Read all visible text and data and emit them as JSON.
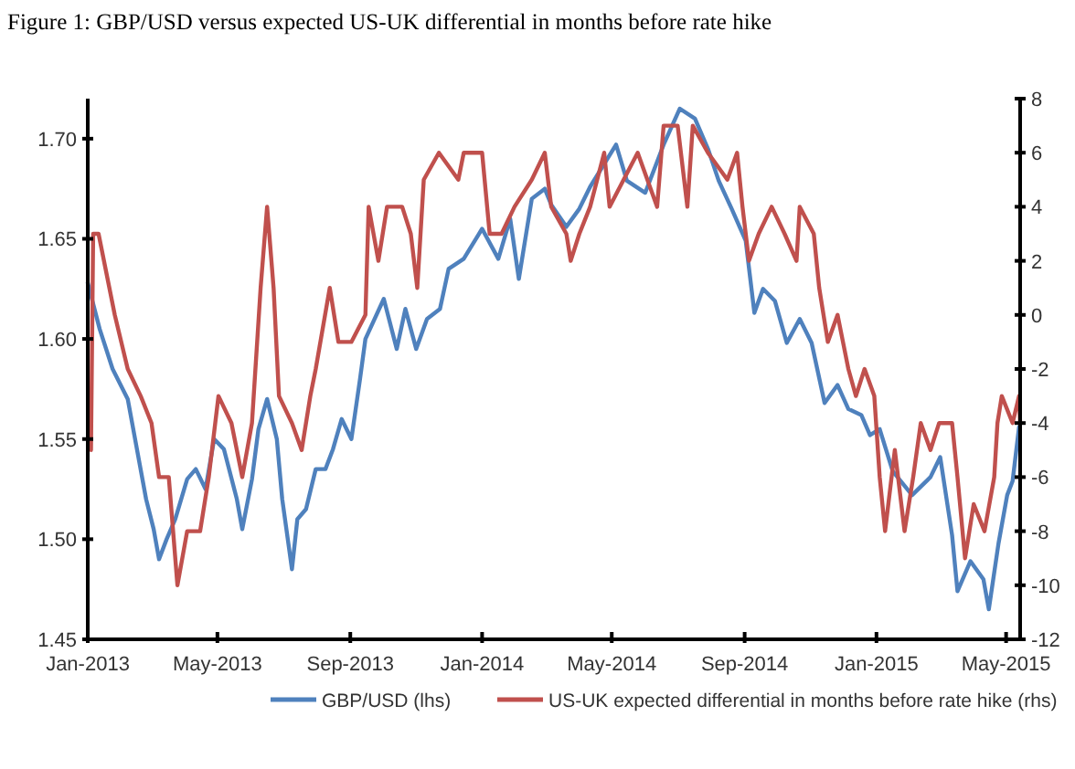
{
  "chart_data": {
    "type": "line",
    "title": "Figure 1: GBP/USD versus expected US-UK differential in months before rate hike",
    "xlim": [
      "2013-01-01",
      "2015-05-14"
    ],
    "xticks": [
      {
        "value": "2013-01-01",
        "label": "Jan-2013"
      },
      {
        "value": "2013-05-01",
        "label": "May-2013"
      },
      {
        "value": "2013-09-01",
        "label": "Sep-2013"
      },
      {
        "value": "2014-01-01",
        "label": "Jan-2014"
      },
      {
        "value": "2014-05-01",
        "label": "May-2014"
      },
      {
        "value": "2014-09-01",
        "label": "Sep-2014"
      },
      {
        "value": "2015-01-01",
        "label": "Jan-2015"
      },
      {
        "value": "2015-05-01",
        "label": "May-2015"
      }
    ],
    "ylim": [
      1.45,
      1.72
    ],
    "yticks": [
      {
        "value": 1.45,
        "label": "1.45"
      },
      {
        "value": 1.5,
        "label": "1.50"
      },
      {
        "value": 1.55,
        "label": "1.55"
      },
      {
        "value": 1.6,
        "label": "1.60"
      },
      {
        "value": 1.65,
        "label": "1.65"
      },
      {
        "value": 1.7,
        "label": "1.70"
      }
    ],
    "y2lim": [
      -12,
      8
    ],
    "y2ticks": [
      -12,
      -10,
      -8,
      -6,
      -4,
      -2,
      0,
      2,
      4,
      6,
      8
    ],
    "grid": false,
    "legend": "bottom",
    "line_style": "solid",
    "marker": "none",
    "series": [
      {
        "name": "GBP/USD (lhs)",
        "color": "#4f81bd",
        "x": [
          "2013-01-01",
          "2013-01-12",
          "2013-01-24",
          "2013-02-07",
          "2013-02-24",
          "2013-03-03",
          "2013-03-08",
          "2013-03-15",
          "2013-03-23",
          "2013-04-03",
          "2013-04-11",
          "2013-04-20",
          "2013-04-28",
          "2013-05-07",
          "2013-05-19",
          "2013-05-24",
          "2013-06-02",
          "2013-06-08",
          "2013-06-16",
          "2013-06-25",
          "2013-06-30",
          "2013-07-09",
          "2013-07-14",
          "2013-07-22",
          "2013-07-31",
          "2013-08-09",
          "2013-08-16",
          "2013-08-24",
          "2013-09-02",
          "2013-09-10",
          "2013-09-15",
          "2013-10-02",
          "2013-10-14",
          "2013-10-22",
          "2013-11-01",
          "2013-11-11",
          "2013-11-23",
          "2013-12-01",
          "2013-12-15",
          "2014-01-01",
          "2014-01-16",
          "2014-01-27",
          "2014-02-04",
          "2014-02-16",
          "2014-02-28",
          "2014-03-06",
          "2014-03-20",
          "2014-04-01",
          "2014-04-11",
          "2014-05-05",
          "2014-05-15",
          "2014-06-01",
          "2014-06-18",
          "2014-07-03",
          "2014-07-17",
          "2014-07-29",
          "2014-08-08",
          "2014-08-20",
          "2014-09-02",
          "2014-09-10",
          "2014-09-18",
          "2014-09-29",
          "2014-10-10",
          "2014-10-22",
          "2014-11-02",
          "2014-11-14",
          "2014-11-26",
          "2014-12-06",
          "2014-12-18",
          "2014-12-26",
          "2015-01-04",
          "2015-01-16",
          "2015-02-03",
          "2015-02-20",
          "2015-03-01",
          "2015-03-12",
          "2015-03-17",
          "2015-03-29",
          "2015-04-10",
          "2015-04-15",
          "2015-04-24",
          "2015-05-02",
          "2015-05-07",
          "2015-05-13"
        ],
        "values": [
          1.628,
          1.605,
          1.585,
          1.57,
          1.52,
          1.505,
          1.49,
          1.5,
          1.51,
          1.53,
          1.535,
          1.525,
          1.55,
          1.545,
          1.52,
          1.505,
          1.53,
          1.555,
          1.57,
          1.55,
          1.52,
          1.485,
          1.51,
          1.515,
          1.535,
          1.535,
          1.545,
          1.56,
          1.55,
          1.58,
          1.6,
          1.62,
          1.595,
          1.615,
          1.595,
          1.61,
          1.615,
          1.635,
          1.64,
          1.655,
          1.64,
          1.66,
          1.63,
          1.67,
          1.675,
          1.667,
          1.656,
          1.665,
          1.676,
          1.697,
          1.679,
          1.673,
          1.697,
          1.715,
          1.71,
          1.695,
          1.679,
          1.665,
          1.649,
          1.613,
          1.625,
          1.619,
          1.598,
          1.61,
          1.598,
          1.568,
          1.577,
          1.565,
          1.562,
          1.552,
          1.555,
          1.534,
          1.522,
          1.531,
          1.541,
          1.502,
          1.474,
          1.489,
          1.48,
          1.465,
          1.498,
          1.522,
          1.529,
          1.556
        ]
      },
      {
        "name": "US-UK expected differential in months before rate hike (rhs)",
        "color": "#c0504d",
        "axis": "y2",
        "x": [
          "2013-01-04",
          "2013-01-06",
          "2013-01-11",
          "2013-01-26",
          "2013-02-07",
          "2013-02-19",
          "2013-03-01",
          "2013-03-08",
          "2013-03-17",
          "2013-03-25",
          "2013-04-03",
          "2013-04-15",
          "2013-04-23",
          "2013-05-02",
          "2013-05-14",
          "2013-05-24",
          "2013-06-02",
          "2013-06-10",
          "2013-06-16",
          "2013-06-22",
          "2013-06-27",
          "2013-07-09",
          "2013-07-18",
          "2013-07-26",
          "2013-07-31",
          "2013-08-13",
          "2013-08-21",
          "2013-09-02",
          "2013-09-15",
          "2013-09-18",
          "2013-09-27",
          "2013-10-05",
          "2013-10-19",
          "2013-10-27",
          "2013-11-02",
          "2013-11-08",
          "2013-11-22",
          "2013-12-10",
          "2013-12-15",
          "2014-01-01",
          "2014-01-08",
          "2014-01-19",
          "2014-01-31",
          "2014-02-16",
          "2014-02-28",
          "2014-03-06",
          "2014-03-20",
          "2014-03-24",
          "2014-04-01",
          "2014-04-11",
          "2014-04-24",
          "2014-04-29",
          "2014-05-12",
          "2014-05-25",
          "2014-06-12",
          "2014-06-18",
          "2014-07-01",
          "2014-07-10",
          "2014-07-15",
          "2014-07-29",
          "2014-08-16",
          "2014-08-25",
          "2014-08-30",
          "2014-09-05",
          "2014-09-14",
          "2014-09-26",
          "2014-10-08",
          "2014-10-19",
          "2014-10-22",
          "2014-11-04",
          "2014-11-09",
          "2014-11-17",
          "2014-11-26",
          "2014-12-01",
          "2014-12-06",
          "2014-12-13",
          "2014-12-21",
          "2014-12-30",
          "2015-01-04",
          "2015-01-09",
          "2015-01-18",
          "2015-01-27",
          "2015-02-04",
          "2015-02-11",
          "2015-02-20",
          "2015-02-28",
          "2015-03-12",
          "2015-03-17",
          "2015-03-24",
          "2015-04-01",
          "2015-04-11",
          "2015-04-20",
          "2015-04-23",
          "2015-04-27",
          "2015-05-07",
          "2015-05-13",
          "2015-05-14"
        ],
        "values": [
          -5,
          3,
          3,
          0,
          -2,
          -3,
          -4,
          -6,
          -6,
          -10,
          -8,
          -8,
          -6,
          -3,
          -4,
          -6,
          -4,
          1,
          4,
          1,
          -3,
          -4,
          -5,
          -3,
          -2,
          1,
          -1,
          -1,
          0,
          4,
          2,
          4,
          4,
          3,
          1,
          5,
          6,
          5,
          6,
          6,
          3,
          3,
          4,
          5,
          6,
          4,
          3,
          2,
          3,
          4,
          6,
          4,
          5,
          6,
          4,
          7,
          7,
          4,
          7,
          6,
          5,
          6,
          4,
          2,
          3,
          4,
          3,
          2,
          4,
          3,
          1,
          -1,
          0,
          -1,
          -2,
          -3,
          -2,
          -3,
          -6,
          -8,
          -5,
          -8,
          -6,
          -4,
          -5,
          -4,
          -4,
          -6,
          -9,
          -7,
          -8,
          -6,
          -4,
          -3,
          -4,
          -3,
          -4
        ]
      }
    ]
  }
}
